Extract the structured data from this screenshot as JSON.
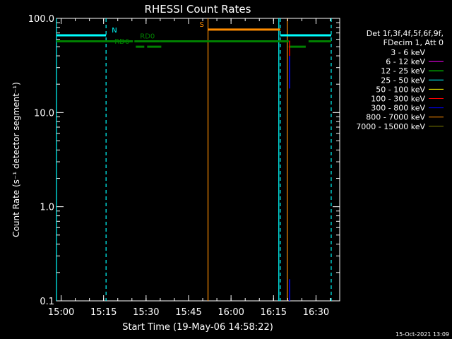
{
  "chart_data": {
    "type": "line",
    "title": "RHESSI Count Rates",
    "xlabel": "Start Time (19-May-06 14:58:22)",
    "ylabel": "Count Rate (s⁻¹ detector segment⁻¹)",
    "x_unit": "minutes after 14:58:22",
    "xlim": [
      0,
      100
    ],
    "ylim": [
      0.1,
      100
    ],
    "yscale": "log",
    "grid": false,
    "x_ticks": [
      {
        "value": 1.63,
        "label": "15:00"
      },
      {
        "value": 16.63,
        "label": "15:15"
      },
      {
        "value": 31.63,
        "label": "15:30"
      },
      {
        "value": 46.63,
        "label": "15:45"
      },
      {
        "value": 61.63,
        "label": "16:00"
      },
      {
        "value": 76.63,
        "label": "16:15"
      },
      {
        "value": 91.63,
        "label": "16:30"
      }
    ],
    "y_ticks": [
      {
        "value": 0.1,
        "label": "0.1"
      },
      {
        "value": 1,
        "label": "1.0"
      },
      {
        "value": 10,
        "label": "10.0"
      },
      {
        "value": 100,
        "label": "100.0"
      }
    ],
    "legend": {
      "placement": "outside-right",
      "header": [
        "Det 1f,3f,4f,5f,6f,9f,",
        "FDecim 1, Att 0"
      ],
      "entries": [
        {
          "label": "3 - 6 keV",
          "color": "#000000"
        },
        {
          "label": "6 - 12 keV",
          "color": "#ff00ff"
        },
        {
          "label": "12 - 25 keV",
          "color": "#00ff00"
        },
        {
          "label": "25 - 50 keV",
          "color": "#00ffff"
        },
        {
          "label": "50 - 100 keV",
          "color": "#ffff00"
        },
        {
          "label": "100 - 300 keV",
          "color": "#ff0000"
        },
        {
          "label": "300 - 800 keV",
          "color": "#0000ff"
        },
        {
          "label": "800 - 7000 keV",
          "color": "#ff8c00"
        },
        {
          "label": "7000 - 15000 keV",
          "color": "#808000"
        }
      ]
    },
    "segments": [
      {
        "x1": 0,
        "x2": 17.5,
        "y": 66,
        "color": "#00ffff",
        "width": 3
      },
      {
        "x1": 79,
        "x2": 97,
        "y": 66,
        "color": "#00ffff",
        "width": 3
      },
      {
        "x1": 53.5,
        "x2": 79,
        "y": 76,
        "color": "#ff8c00",
        "width": 3
      },
      {
        "x1": 0,
        "x2": 27,
        "y": 57,
        "color": "#008000",
        "width": 3
      },
      {
        "x1": 27.5,
        "x2": 36.5,
        "y": 57,
        "color": "#008000",
        "width": 3
      },
      {
        "x1": 36.5,
        "x2": 82,
        "y": 57,
        "color": "#008000",
        "width": 3
      },
      {
        "x1": 89,
        "x2": 97,
        "y": 57,
        "color": "#008000",
        "width": 3
      },
      {
        "x1": 28,
        "x2": 31,
        "y": 50,
        "color": "#008000",
        "width": 3
      },
      {
        "x1": 32,
        "x2": 37,
        "y": 50,
        "color": "#008000",
        "width": 3
      },
      {
        "x1": 82,
        "x2": 88,
        "y": 50,
        "color": "#008000",
        "width": 3
      }
    ],
    "vlines": [
      {
        "x": 0,
        "color": "#00ffff",
        "style": "solid"
      },
      {
        "x": 17.5,
        "color": "#00ffff",
        "style": "dashed"
      },
      {
        "x": 53.5,
        "color": "#ff8c00",
        "style": "solid"
      },
      {
        "x": 78.5,
        "color": "#00ffff",
        "style": "solid"
      },
      {
        "x": 79,
        "color": "#00ffff",
        "style": "dashed"
      },
      {
        "x": 81.5,
        "color": "#ff8c00",
        "style": "solid"
      },
      {
        "x": 97,
        "color": "#00ffff",
        "style": "dashed"
      }
    ],
    "spikes": [
      {
        "x": 82.3,
        "y1": 0.1,
        "y2": 0.17,
        "color": "#0000ff"
      },
      {
        "x": 82.3,
        "y1": 18,
        "y2": 40,
        "color": "#0000ff"
      },
      {
        "x": 82.3,
        "y1": 40,
        "y2": 58,
        "color": "#ff0000"
      }
    ],
    "annotations": [
      {
        "text": "N",
        "x": 19.5,
        "y": 66,
        "color": "#00ffff"
      },
      {
        "text": "RD0",
        "x": 29.5,
        "y": 57,
        "color": "#008000"
      },
      {
        "text": "RD6",
        "x": 20.5,
        "y": 50,
        "color": "#008000"
      },
      {
        "text": "S",
        "x": 50.5,
        "y": 76,
        "color": "#ff8c00"
      }
    ]
  },
  "footer": {
    "timestamp": "15-Oct-2021 13:09"
  }
}
